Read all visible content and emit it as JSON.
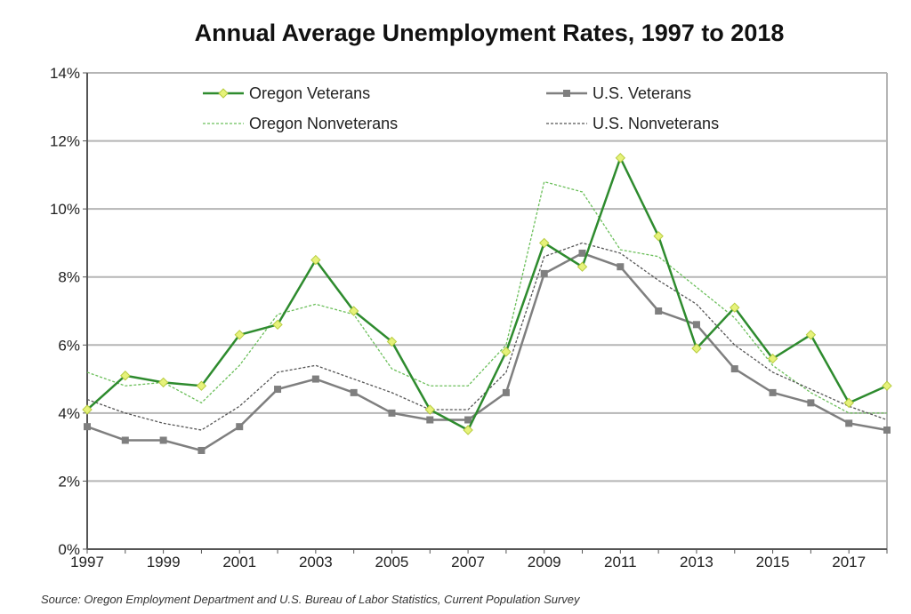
{
  "chart_data": {
    "type": "line",
    "title": "Annual Average Unemployment Rates, 1997 to 2018",
    "source": "Source: Oregon Employment Department and U.S. Bureau of Labor Statistics, Current Population Survey",
    "xlabel": "",
    "ylabel": "",
    "x": [
      1997,
      1998,
      1999,
      2000,
      2001,
      2002,
      2003,
      2004,
      2005,
      2006,
      2007,
      2008,
      2009,
      2010,
      2011,
      2012,
      2013,
      2014,
      2015,
      2016,
      2017,
      2018
    ],
    "x_tick_labels": [
      "1997",
      "1999",
      "2001",
      "2003",
      "2005",
      "2007",
      "2009",
      "2011",
      "2013",
      "2015",
      "2017"
    ],
    "y_tick_labels": [
      "0%",
      "2%",
      "4%",
      "6%",
      "8%",
      "10%",
      "12%",
      "14%"
    ],
    "ylim": [
      0,
      14
    ],
    "grid": "horizontal",
    "legend_placement": "top",
    "series": [
      {
        "name": "Oregon Veterans",
        "color": "#2e8b2e",
        "marker": "diamond",
        "marker_color": "#e6f27a",
        "style": "solid",
        "values": [
          4.1,
          5.1,
          4.9,
          4.8,
          6.3,
          6.6,
          8.5,
          7.0,
          6.1,
          4.1,
          3.5,
          5.8,
          9.0,
          8.3,
          11.5,
          9.2,
          5.9,
          7.1,
          5.6,
          6.3,
          4.3,
          4.8
        ]
      },
      {
        "name": "U.S. Veterans",
        "color": "#7f7f7f",
        "marker": "square",
        "marker_color": "#7f7f7f",
        "style": "solid",
        "values": [
          3.6,
          3.2,
          3.2,
          2.9,
          3.6,
          4.7,
          5.0,
          4.6,
          4.0,
          3.8,
          3.8,
          4.6,
          8.1,
          8.7,
          8.3,
          7.0,
          6.6,
          5.3,
          4.6,
          4.3,
          3.7,
          3.5
        ]
      },
      {
        "name": "Oregon Nonveterans",
        "color": "#6bbf5a",
        "marker": "none",
        "style": "dotted",
        "values": [
          5.2,
          4.8,
          4.9,
          4.3,
          5.4,
          6.9,
          7.2,
          6.9,
          5.3,
          4.8,
          4.8,
          6.0,
          10.8,
          10.5,
          8.8,
          8.6,
          7.7,
          6.8,
          5.4,
          4.6,
          4.0,
          4.0
        ]
      },
      {
        "name": "U.S. Nonveterans",
        "color": "#555555",
        "marker": "none",
        "style": "dotted",
        "values": [
          4.4,
          4.0,
          3.7,
          3.5,
          4.2,
          5.2,
          5.4,
          5.0,
          4.6,
          4.1,
          4.1,
          5.2,
          8.6,
          9.0,
          8.7,
          7.9,
          7.2,
          6.0,
          5.2,
          4.7,
          4.2,
          3.8
        ]
      }
    ]
  }
}
